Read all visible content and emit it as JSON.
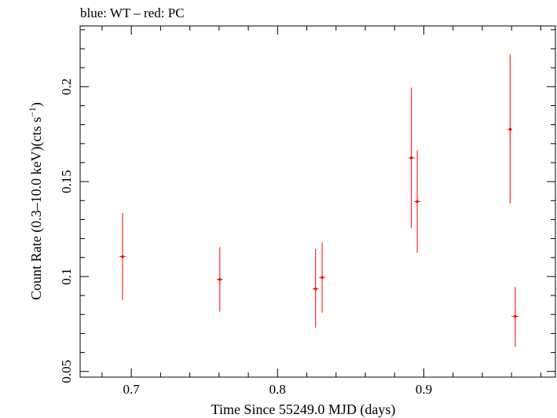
{
  "chart_data": {
    "type": "scatter",
    "title": "blue: WT – red: PC",
    "xlabel": "Time Since 55249.0 MJD (days)",
    "ylabel_main": "Count Rate (0.3–10.0 keV)(cts s",
    "ylabel_sup": "−1",
    "ylabel_close": ")",
    "xlim": [
      0.665,
      0.99
    ],
    "ylim": [
      0.047,
      0.232
    ],
    "x_ticks": [
      0.7,
      0.8,
      0.9
    ],
    "x_tick_labels": [
      "0.7",
      "0.8",
      "0.9"
    ],
    "y_ticks": [
      0.05,
      0.1,
      0.15,
      0.2
    ],
    "y_tick_labels": [
      "0.05",
      "0.1",
      "0.15",
      "0.2"
    ],
    "grid": false,
    "colors": {
      "WT": "#0000ff",
      "PC": "#ff0000",
      "axes": "#000000"
    },
    "series": [
      {
        "name": "PC",
        "color": "#ff0000",
        "points": [
          {
            "x": 0.694,
            "xerr": 0.002,
            "y": 0.1105,
            "ylo": 0.0875,
            "yhi": 0.1335
          },
          {
            "x": 0.7605,
            "xerr": 0.002,
            "y": 0.0985,
            "ylo": 0.0815,
            "yhi": 0.1155
          },
          {
            "x": 0.826,
            "xerr": 0.002,
            "y": 0.0935,
            "ylo": 0.073,
            "yhi": 0.1145
          },
          {
            "x": 0.8305,
            "xerr": 0.002,
            "y": 0.0995,
            "ylo": 0.081,
            "yhi": 0.118
          },
          {
            "x": 0.8915,
            "xerr": 0.002,
            "y": 0.1625,
            "ylo": 0.1255,
            "yhi": 0.1995
          },
          {
            "x": 0.8955,
            "xerr": 0.002,
            "y": 0.1395,
            "ylo": 0.1125,
            "yhi": 0.1665
          },
          {
            "x": 0.959,
            "xerr": 0.0015,
            "y": 0.1775,
            "ylo": 0.1385,
            "yhi": 0.217
          },
          {
            "x": 0.9625,
            "xerr": 0.0025,
            "y": 0.079,
            "ylo": 0.063,
            "yhi": 0.0945
          }
        ]
      }
    ]
  }
}
